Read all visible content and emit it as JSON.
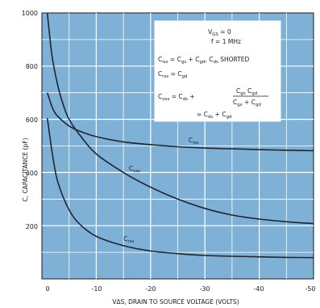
{
  "chart_data": {
    "type": "line",
    "title": "",
    "xlabel": "VΔS, DRAIN TO SOURCE VOLTAGE (VOLTS)",
    "ylabel": "C, CAPACITANCE (pF)",
    "xlim": [
      0,
      -50
    ],
    "ylim": [
      0,
      1000
    ],
    "x_ticks": [
      "0",
      "-10",
      "-20",
      "-30",
      "-40",
      "-50"
    ],
    "y_ticks": [
      "200",
      "400",
      "600",
      "800",
      "1000"
    ],
    "grid": true,
    "series": [
      {
        "name": "Ciss",
        "label_main": "C",
        "label_sub": "iss",
        "x": [
          -1,
          -2,
          -3,
          -5,
          -7,
          -10,
          -15,
          -20,
          -25,
          -30,
          -35,
          -40,
          -45,
          -50
        ],
        "values": [
          700,
          640,
          610,
          575,
          555,
          535,
          515,
          505,
          497,
          492,
          489,
          486,
          484,
          482
        ]
      },
      {
        "name": "Coss",
        "label_main": "C",
        "label_sub": "oss",
        "x": [
          -1,
          -1.5,
          -2,
          -3,
          -4,
          -5,
          -7,
          -10,
          -15,
          -20,
          -25,
          -30,
          -35,
          -40,
          -45,
          -50
        ],
        "values": [
          1000,
          900,
          820,
          720,
          650,
          600,
          540,
          470,
          400,
          345,
          300,
          265,
          240,
          225,
          215,
          208
        ]
      },
      {
        "name": "Crss",
        "label_main": "C",
        "label_sub": "rss",
        "x": [
          -1,
          -2,
          -3,
          -5,
          -7,
          -10,
          -15,
          -20,
          -25,
          -30,
          -35,
          -40,
          -45,
          -50
        ],
        "values": [
          605,
          460,
          360,
          260,
          205,
          160,
          125,
          105,
          95,
          88,
          85,
          83,
          81,
          80
        ]
      }
    ],
    "annotation": {
      "lines": [
        "VGS = 0",
        "f = 1 MHz",
        "Ciss = Cgs + Cgd, Cds SHORTED",
        "Crss = Cgd",
        "Coss = Cds + CgsCgd / (Cgs + Cgd)",
        "≈ Cds + Cgd"
      ]
    },
    "colors": {
      "background": "#7fb1d6",
      "grid": "#ffffff",
      "curve": "#1f2535"
    }
  }
}
